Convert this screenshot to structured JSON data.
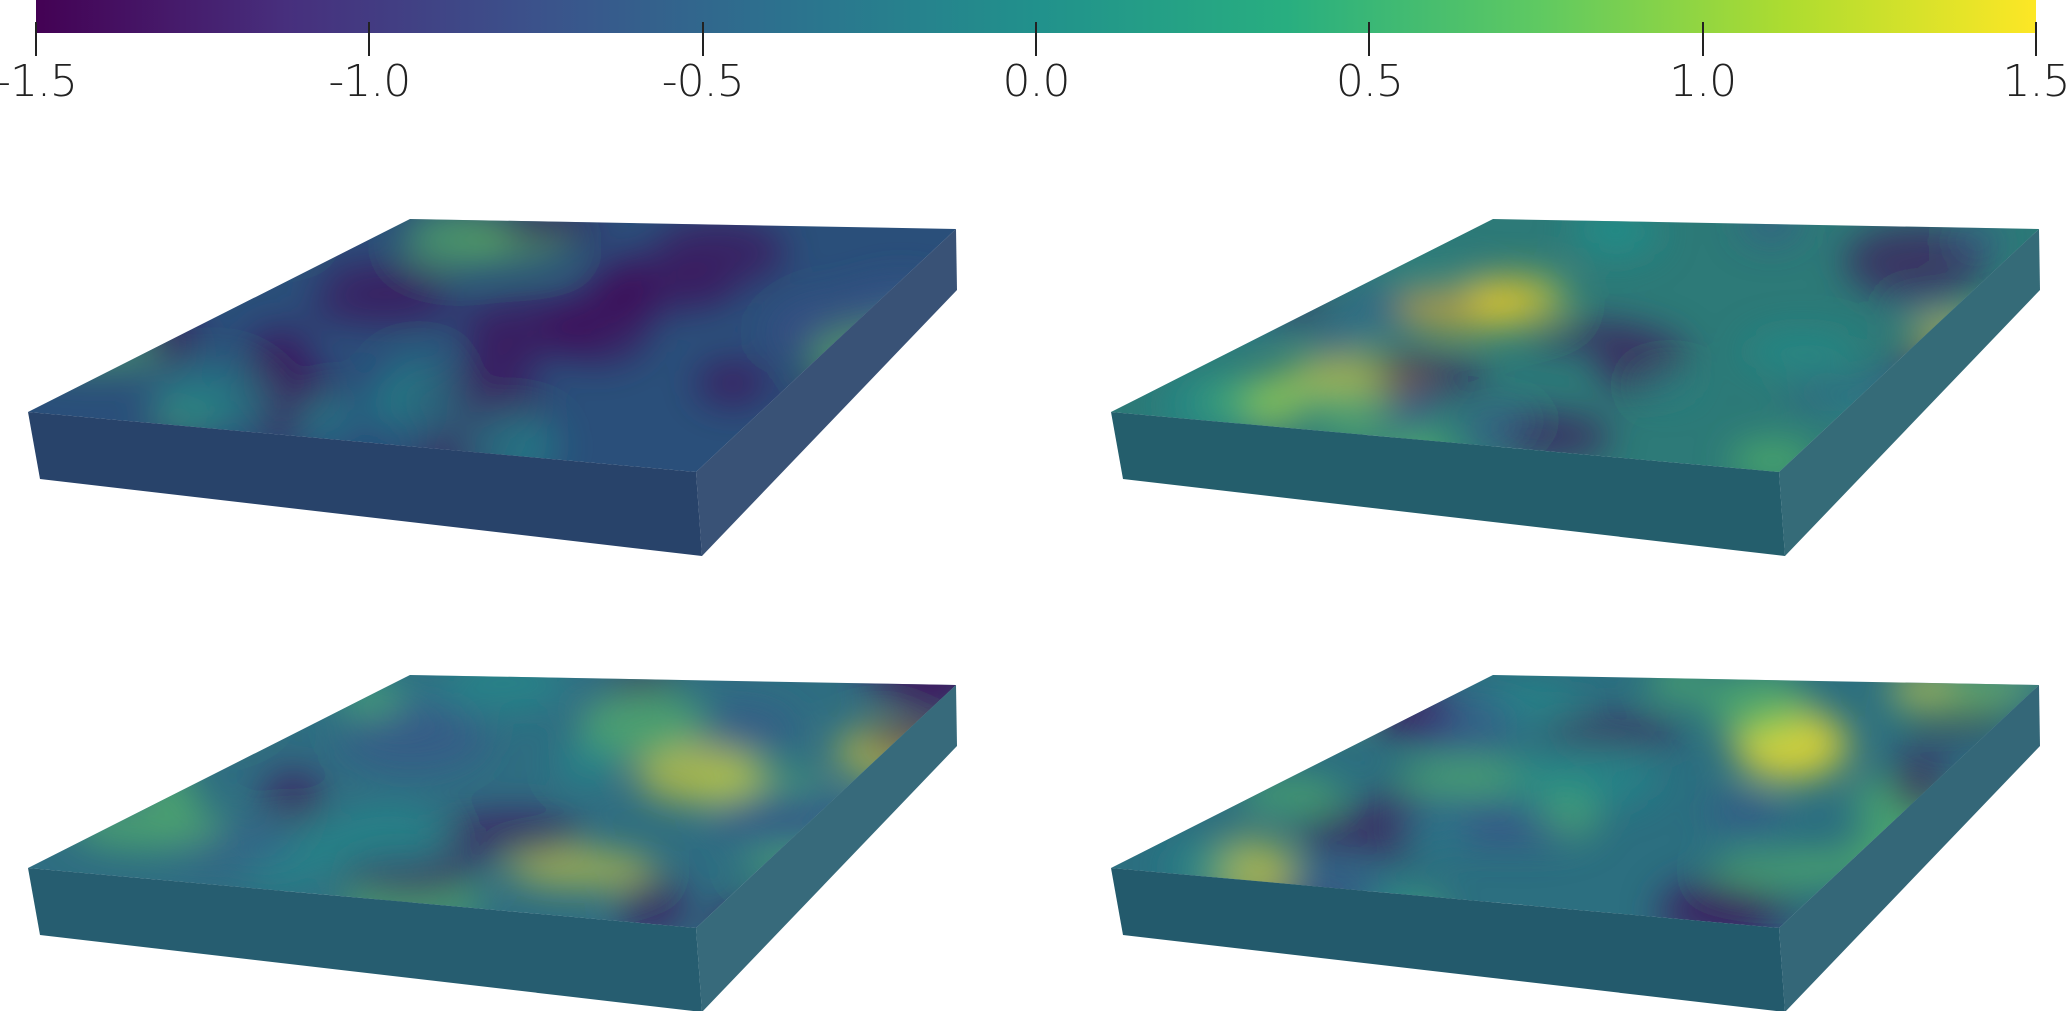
{
  "colorbar": {
    "colormap": "viridis",
    "range": [
      -1.5,
      1.5
    ],
    "ticks": [
      {
        "value": -1.5,
        "label": "-1.5"
      },
      {
        "value": -1.0,
        "label": "-1.0"
      },
      {
        "value": -0.5,
        "label": "-0.5"
      },
      {
        "value": 0.0,
        "label": "0.0"
      },
      {
        "value": 0.5,
        "label": "0.5"
      },
      {
        "value": 1.0,
        "label": "1.0"
      },
      {
        "value": 1.5,
        "label": "1.5"
      }
    ],
    "colors": [
      "#440154",
      "#472f7d",
      "#3b528b",
      "#2c728e",
      "#21918c",
      "#28ae80",
      "#5ec962",
      "#addc30",
      "#fde725"
    ]
  },
  "panels": [
    {
      "id": "top-left",
      "mean_value": -0.9,
      "top_color": "#2a4f7a",
      "side_color": "#28436a"
    },
    {
      "id": "top-right",
      "mean_value": 0.1,
      "top_color": "#2d7a78",
      "side_color": "#245e6c"
    },
    {
      "id": "bottom-left",
      "mean_value": -0.2,
      "top_color": "#2f6e82",
      "side_color": "#265d70"
    },
    {
      "id": "bottom-right",
      "mean_value": 0.0,
      "top_color": "#2c6f80",
      "side_color": "#235a6c"
    }
  ]
}
